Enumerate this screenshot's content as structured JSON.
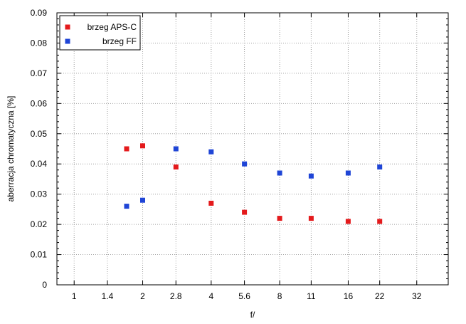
{
  "chart_data": {
    "type": "scatter",
    "title": "",
    "xlabel": "f/",
    "ylabel": "aberracja chromatyczna [%]",
    "categories": [
      "1",
      "1.4",
      "2",
      "2.8",
      "4",
      "5.6",
      "8",
      "11",
      "16",
      "22",
      "32"
    ],
    "x_scale": "log",
    "xlim": [
      0.84,
      44
    ],
    "ylim": [
      0,
      0.09
    ],
    "yticks": [
      "0",
      "0.01",
      "0.02",
      "0.03",
      "0.04",
      "0.05",
      "0.06",
      "0.07",
      "0.08",
      "0.09"
    ],
    "grid": true,
    "legend_position": "top-left",
    "series": [
      {
        "name": "brzeg APS-C",
        "color": "#e41a1c",
        "points": [
          {
            "x": 1.7,
            "y": 0.045
          },
          {
            "x": 2.0,
            "y": 0.046
          },
          {
            "x": 2.8,
            "y": 0.039
          },
          {
            "x": 4.0,
            "y": 0.027
          },
          {
            "x": 5.6,
            "y": 0.024
          },
          {
            "x": 8.0,
            "y": 0.022
          },
          {
            "x": 11.0,
            "y": 0.022
          },
          {
            "x": 16.0,
            "y": 0.021
          },
          {
            "x": 22.0,
            "y": 0.021
          }
        ]
      },
      {
        "name": "brzeg FF",
        "color": "#1f45d6",
        "points": [
          {
            "x": 1.7,
            "y": 0.026
          },
          {
            "x": 2.0,
            "y": 0.028
          },
          {
            "x": 2.8,
            "y": 0.045
          },
          {
            "x": 4.0,
            "y": 0.044
          },
          {
            "x": 5.6,
            "y": 0.04
          },
          {
            "x": 8.0,
            "y": 0.037
          },
          {
            "x": 11.0,
            "y": 0.036
          },
          {
            "x": 16.0,
            "y": 0.037
          },
          {
            "x": 22.0,
            "y": 0.039
          }
        ]
      }
    ]
  }
}
